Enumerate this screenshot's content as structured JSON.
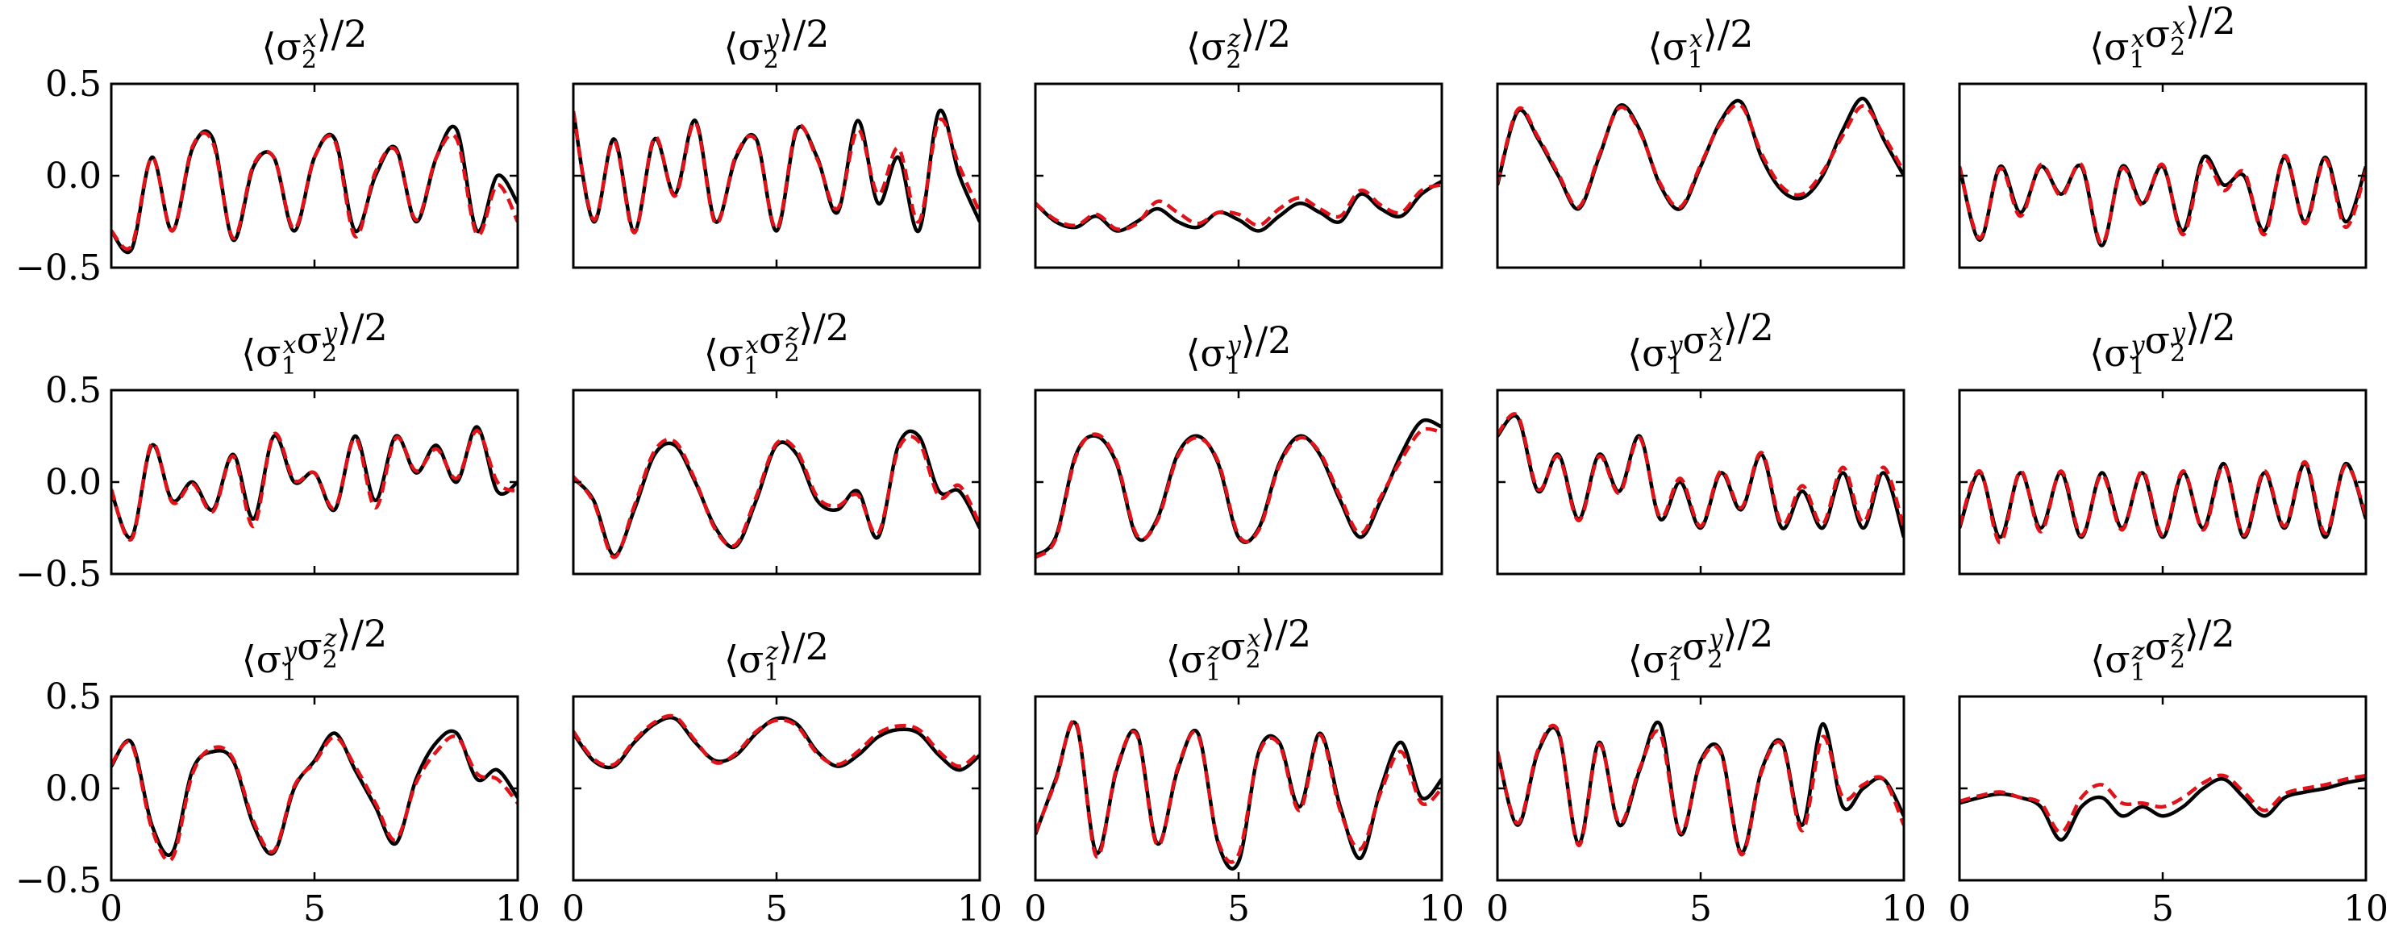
{
  "chart_data": {
    "type": "line",
    "layout": "3x5 grid of small multiples",
    "xlim": [
      0,
      10
    ],
    "ylim": [
      -0.5,
      0.5
    ],
    "x_ticks": [
      "0",
      "5",
      "10"
    ],
    "y_ticks": [
      "0.5",
      "0.0",
      "−0.5"
    ],
    "series_styles": [
      {
        "style": "solid",
        "color": "#000000"
      },
      {
        "style": "dashed",
        "color": "#e0131a"
      }
    ],
    "x": [
      0.0,
      0.5,
      1.0,
      1.5,
      2.0,
      2.5,
      3.0,
      3.5,
      4.0,
      4.5,
      5.0,
      5.5,
      6.0,
      6.5,
      7.0,
      7.5,
      8.0,
      8.5,
      9.0,
      9.5,
      10.0
    ],
    "panels": [
      {
        "title": [
          "⟨σ",
          [
            [
              "2",
              "x"
            ]
          ],
          "⟩/2"
        ],
        "series": [
          {
            "values": [
              -0.3,
              -0.4,
              0.1,
              -0.3,
              0.15,
              0.2,
              -0.35,
              0.05,
              0.1,
              -0.3,
              0.1,
              0.2,
              -0.3,
              0.0,
              0.15,
              -0.25,
              0.1,
              0.25,
              -0.3,
              0.0,
              -0.15
            ]
          },
          {
            "values": [
              -0.3,
              -0.38,
              0.1,
              -0.3,
              0.16,
              0.18,
              -0.34,
              0.06,
              0.1,
              -0.29,
              0.1,
              0.19,
              -0.33,
              0.02,
              0.14,
              -0.24,
              0.1,
              0.2,
              -0.32,
              -0.05,
              -0.25
            ]
          }
        ]
      },
      {
        "title": [
          "⟨σ",
          [
            [
              "2",
              "y"
            ]
          ],
          "⟩/2"
        ],
        "series": [
          {
            "values": [
              0.35,
              -0.25,
              0.2,
              -0.3,
              0.2,
              -0.1,
              0.3,
              -0.25,
              0.1,
              0.2,
              -0.3,
              0.25,
              0.1,
              -0.2,
              0.3,
              -0.15,
              0.1,
              -0.3,
              0.35,
              0.0,
              -0.25
            ]
          },
          {
            "values": [
              0.35,
              -0.24,
              0.19,
              -0.31,
              0.21,
              -0.11,
              0.29,
              -0.26,
              0.11,
              0.19,
              -0.29,
              0.26,
              0.09,
              -0.18,
              0.25,
              -0.1,
              0.15,
              -0.25,
              0.3,
              0.05,
              -0.2
            ]
          }
        ]
      },
      {
        "title": [
          "⟨σ",
          [
            [
              "2",
              "z"
            ]
          ],
          "⟩/2"
        ],
        "series": [
          {
            "values": [
              -0.15,
              -0.25,
              -0.28,
              -0.22,
              -0.3,
              -0.25,
              -0.18,
              -0.25,
              -0.28,
              -0.2,
              -0.24,
              -0.3,
              -0.22,
              -0.15,
              -0.2,
              -0.25,
              -0.1,
              -0.18,
              -0.22,
              -0.1,
              -0.03
            ]
          },
          {
            "values": [
              -0.15,
              -0.24,
              -0.27,
              -0.21,
              -0.29,
              -0.26,
              -0.14,
              -0.2,
              -0.26,
              -0.2,
              -0.21,
              -0.27,
              -0.18,
              -0.12,
              -0.18,
              -0.22,
              -0.08,
              -0.16,
              -0.2,
              -0.08,
              -0.05
            ]
          }
        ]
      },
      {
        "title": [
          "⟨σ",
          [
            [
              "1",
              "x"
            ]
          ],
          "⟩/2"
        ],
        "series": [
          {
            "values": [
              -0.05,
              0.35,
              0.2,
              0.0,
              -0.18,
              0.1,
              0.38,
              0.25,
              -0.05,
              -0.18,
              0.05,
              0.3,
              0.4,
              0.1,
              -0.08,
              -0.12,
              0.0,
              0.25,
              0.42,
              0.2,
              0.0
            ]
          },
          {
            "values": [
              -0.04,
              0.36,
              0.21,
              0.01,
              -0.17,
              0.11,
              0.37,
              0.24,
              -0.04,
              -0.17,
              0.06,
              0.29,
              0.38,
              0.12,
              -0.06,
              -0.1,
              0.02,
              0.22,
              0.38,
              0.22,
              0.02
            ]
          }
        ]
      },
      {
        "title": [
          "⟨σ",
          [
            [
              "1",
              "x"
            ],
            [
              "2",
              "x"
            ]
          ],
          "⟩/2"
        ],
        "series": [
          {
            "values": [
              0.05,
              -0.35,
              0.05,
              -0.2,
              0.05,
              -0.1,
              0.05,
              -0.38,
              0.05,
              -0.15,
              0.05,
              -0.3,
              0.1,
              -0.05,
              0.0,
              -0.3,
              0.1,
              -0.25,
              0.1,
              -0.25,
              0.05
            ]
          },
          {
            "values": [
              0.05,
              -0.34,
              0.04,
              -0.22,
              0.06,
              -0.11,
              0.06,
              -0.37,
              0.04,
              -0.16,
              0.06,
              -0.32,
              0.08,
              -0.08,
              0.02,
              -0.32,
              0.11,
              -0.26,
              0.09,
              -0.28,
              0.03
            ]
          }
        ]
      },
      {
        "title": [
          "⟨σ",
          [
            [
              "1",
              "x"
            ],
            [
              "2",
              "y"
            ]
          ],
          "⟩/2"
        ],
        "series": [
          {
            "values": [
              -0.05,
              -0.3,
              0.2,
              -0.1,
              0.0,
              -0.15,
              0.15,
              -0.2,
              0.25,
              0.0,
              0.05,
              -0.15,
              0.25,
              -0.1,
              0.25,
              0.05,
              0.2,
              0.0,
              0.3,
              -0.05,
              0.0
            ]
          },
          {
            "values": [
              -0.04,
              -0.31,
              0.21,
              -0.11,
              -0.01,
              -0.16,
              0.14,
              -0.24,
              0.26,
              0.01,
              0.05,
              -0.14,
              0.24,
              -0.14,
              0.24,
              0.06,
              0.18,
              0.02,
              0.28,
              0.0,
              -0.05
            ]
          }
        ]
      },
      {
        "title": [
          "⟨σ",
          [
            [
              "1",
              "x"
            ],
            [
              "2",
              "z"
            ]
          ],
          "⟩/2"
        ],
        "series": [
          {
            "values": [
              0.02,
              -0.1,
              -0.4,
              -0.15,
              0.15,
              0.2,
              0.0,
              -0.25,
              -0.35,
              -0.1,
              0.2,
              0.15,
              -0.1,
              -0.15,
              -0.05,
              -0.3,
              0.2,
              0.25,
              -0.05,
              -0.05,
              -0.25
            ]
          },
          {
            "values": [
              0.03,
              -0.11,
              -0.41,
              -0.13,
              0.17,
              0.22,
              0.01,
              -0.26,
              -0.34,
              -0.08,
              0.21,
              0.17,
              -0.08,
              -0.13,
              -0.07,
              -0.28,
              0.18,
              0.22,
              -0.08,
              -0.02,
              -0.23
            ]
          }
        ]
      },
      {
        "title": [
          "⟨σ",
          [
            [
              "1",
              "y"
            ]
          ],
          "⟩/2"
        ],
        "series": [
          {
            "values": [
              -0.4,
              -0.3,
              0.15,
              0.25,
              0.1,
              -0.3,
              -0.2,
              0.15,
              0.25,
              0.1,
              -0.3,
              -0.25,
              0.1,
              0.25,
              0.15,
              -0.1,
              -0.3,
              -0.1,
              0.15,
              0.33,
              0.3
            ]
          },
          {
            "values": [
              -0.41,
              -0.31,
              0.14,
              0.26,
              0.11,
              -0.29,
              -0.21,
              0.14,
              0.24,
              0.11,
              -0.29,
              -0.26,
              0.09,
              0.24,
              0.16,
              -0.08,
              -0.28,
              -0.08,
              0.12,
              0.28,
              0.27
            ]
          }
        ]
      },
      {
        "title": [
          "⟨σ",
          [
            [
              "1",
              "y"
            ],
            [
              "2",
              "x"
            ]
          ],
          "⟩/2"
        ],
        "series": [
          {
            "values": [
              0.25,
              0.35,
              -0.05,
              0.15,
              -0.2,
              0.15,
              -0.05,
              0.25,
              -0.2,
              0.0,
              -0.25,
              0.05,
              -0.15,
              0.15,
              -0.25,
              -0.05,
              -0.25,
              0.05,
              -0.25,
              0.05,
              -0.3
            ]
          },
          {
            "values": [
              0.26,
              0.36,
              -0.04,
              0.14,
              -0.21,
              0.14,
              -0.06,
              0.24,
              -0.19,
              0.02,
              -0.24,
              0.06,
              -0.14,
              0.16,
              -0.23,
              -0.02,
              -0.23,
              0.08,
              -0.22,
              0.08,
              -0.25
            ]
          }
        ]
      },
      {
        "title": [
          "⟨σ",
          [
            [
              "1",
              "y"
            ],
            [
              "2",
              "y"
            ]
          ],
          "⟩/2"
        ],
        "series": [
          {
            "values": [
              -0.25,
              0.05,
              -0.3,
              0.05,
              -0.25,
              0.05,
              -0.3,
              0.05,
              -0.25,
              0.05,
              -0.3,
              0.05,
              -0.25,
              0.1,
              -0.3,
              0.05,
              -0.25,
              0.1,
              -0.3,
              0.1,
              -0.2
            ]
          },
          {
            "values": [
              -0.24,
              0.06,
              -0.33,
              0.06,
              -0.27,
              0.06,
              -0.29,
              0.04,
              -0.26,
              0.06,
              -0.29,
              0.06,
              -0.26,
              0.09,
              -0.29,
              0.06,
              -0.24,
              0.11,
              -0.28,
              0.09,
              -0.18
            ]
          }
        ]
      },
      {
        "title": [
          "⟨σ",
          [
            [
              "1",
              "y"
            ],
            [
              "2",
              "z"
            ]
          ],
          "⟩/2"
        ],
        "series": [
          {
            "values": [
              0.12,
              0.25,
              -0.2,
              -0.35,
              0.1,
              0.2,
              0.15,
              -0.2,
              -0.35,
              0.0,
              0.15,
              0.3,
              0.1,
              -0.1,
              -0.3,
              0.05,
              0.25,
              0.3,
              0.05,
              0.1,
              -0.05
            ]
          },
          {
            "values": [
              0.13,
              0.24,
              -0.22,
              -0.38,
              0.08,
              0.22,
              0.16,
              -0.18,
              -0.34,
              0.01,
              0.14,
              0.28,
              0.12,
              -0.08,
              -0.28,
              0.03,
              0.2,
              0.28,
              0.08,
              0.05,
              -0.08
            ]
          }
        ]
      },
      {
        "title": [
          "⟨σ",
          [
            [
              "1",
              "z"
            ]
          ],
          "⟩/2"
        ],
        "series": [
          {
            "values": [
              0.3,
              0.15,
              0.12,
              0.25,
              0.35,
              0.38,
              0.25,
              0.15,
              0.18,
              0.3,
              0.38,
              0.35,
              0.2,
              0.12,
              0.18,
              0.28,
              0.32,
              0.3,
              0.18,
              0.1,
              0.18
            ]
          },
          {
            "values": [
              0.31,
              0.16,
              0.13,
              0.26,
              0.36,
              0.39,
              0.26,
              0.14,
              0.19,
              0.31,
              0.37,
              0.34,
              0.19,
              0.13,
              0.2,
              0.3,
              0.34,
              0.32,
              0.2,
              0.12,
              0.2
            ]
          }
        ]
      },
      {
        "title": [
          "⟨σ",
          [
            [
              "1",
              "z"
            ],
            [
              "2",
              "x"
            ]
          ],
          "⟩/2"
        ],
        "series": [
          {
            "values": [
              -0.25,
              0.05,
              0.35,
              -0.35,
              0.1,
              0.3,
              -0.3,
              0.1,
              0.3,
              -0.3,
              -0.4,
              0.2,
              0.25,
              -0.1,
              0.3,
              -0.1,
              -0.38,
              0.0,
              0.25,
              -0.05,
              0.05
            ]
          },
          {
            "values": [
              -0.24,
              0.04,
              0.36,
              -0.37,
              0.11,
              0.29,
              -0.31,
              0.11,
              0.29,
              -0.29,
              -0.36,
              0.19,
              0.24,
              -0.12,
              0.29,
              -0.12,
              -0.33,
              -0.02,
              0.2,
              -0.08,
              0.0
            ]
          }
        ]
      },
      {
        "title": [
          "⟨σ",
          [
            [
              "1",
              "z"
            ],
            [
              "2",
              "y"
            ]
          ],
          "⟩/2"
        ],
        "series": [
          {
            "values": [
              0.2,
              -0.2,
              0.2,
              0.3,
              -0.3,
              0.25,
              -0.2,
              0.1,
              0.35,
              -0.25,
              0.15,
              0.2,
              -0.35,
              0.1,
              0.25,
              -0.2,
              0.35,
              -0.1,
              0.0,
              0.05,
              -0.15
            ]
          },
          {
            "values": [
              0.2,
              -0.19,
              0.21,
              0.31,
              -0.31,
              0.24,
              -0.19,
              0.11,
              0.3,
              -0.24,
              0.14,
              0.19,
              -0.36,
              0.09,
              0.24,
              -0.23,
              0.28,
              -0.05,
              0.02,
              0.05,
              -0.2
            ]
          }
        ]
      },
      {
        "title": [
          "⟨σ",
          [
            [
              "1",
              "z"
            ],
            [
              "2",
              "z"
            ]
          ],
          "⟩/2"
        ],
        "series": [
          {
            "values": [
              -0.08,
              -0.05,
              -0.03,
              -0.05,
              -0.1,
              -0.28,
              -0.1,
              -0.05,
              -0.15,
              -0.1,
              -0.15,
              -0.1,
              0.0,
              0.05,
              -0.05,
              -0.15,
              -0.05,
              -0.02,
              0.0,
              0.03,
              0.05
            ]
          },
          {
            "values": [
              -0.07,
              -0.04,
              -0.02,
              -0.05,
              -0.08,
              -0.24,
              -0.05,
              0.02,
              -0.08,
              -0.08,
              -0.1,
              -0.05,
              0.03,
              0.07,
              -0.02,
              -0.12,
              -0.03,
              0.0,
              0.02,
              0.05,
              0.07
            ]
          }
        ]
      }
    ]
  }
}
